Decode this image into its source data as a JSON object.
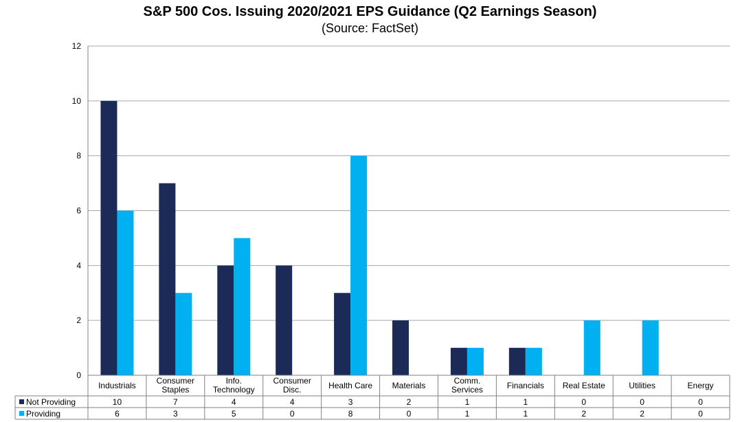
{
  "chart_data": {
    "type": "bar",
    "title": "S&P 500 Cos. Issuing 2020/2021 EPS Guidance (Q2 Earnings Season)",
    "subtitle": "(Source: FactSet)",
    "categories": [
      [
        "Industrials"
      ],
      [
        "Consumer",
        "Staples"
      ],
      [
        "Info.",
        "Technology"
      ],
      [
        "Consumer",
        "Disc."
      ],
      [
        "Health Care"
      ],
      [
        "Materials"
      ],
      [
        "Comm.",
        "Services"
      ],
      [
        "Financials"
      ],
      [
        "Real Estate"
      ],
      [
        "Utilities"
      ],
      [
        "Energy"
      ]
    ],
    "series": [
      {
        "name": "Not Providing",
        "color": "#1b2a57",
        "values": [
          10,
          7,
          4,
          4,
          3,
          2,
          1,
          1,
          0,
          0,
          0
        ]
      },
      {
        "name": "Providing",
        "color": "#00b0f0",
        "values": [
          6,
          3,
          5,
          0,
          8,
          0,
          1,
          1,
          2,
          2,
          0
        ]
      }
    ],
    "ylim": [
      0,
      12
    ],
    "yticks": [
      0,
      2,
      4,
      6,
      8,
      10,
      12
    ],
    "grid": true,
    "legend": "data table below chart"
  }
}
